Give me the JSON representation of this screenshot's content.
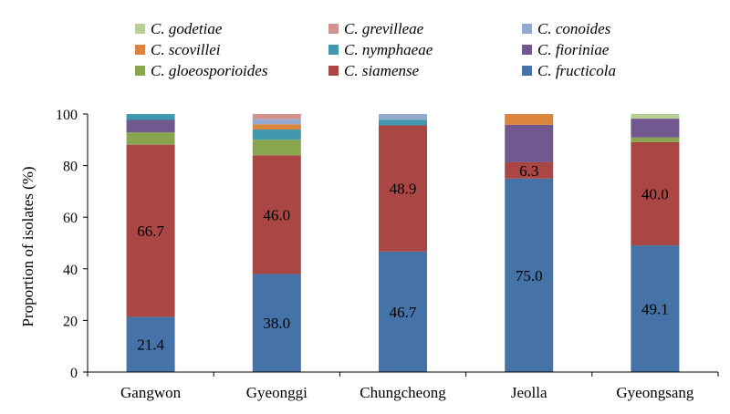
{
  "chart_data": {
    "type": "bar",
    "stacked": true,
    "title": "",
    "xlabel": "",
    "ylabel": "Proportion of isolates (%)",
    "ylim": [
      0,
      100
    ],
    "yticks": [
      0,
      20,
      40,
      60,
      80,
      100
    ],
    "grid": false,
    "legend_position": "top",
    "categories": [
      "Gangwon",
      "Gyeonggi",
      "Chungcheong",
      "Jeolla",
      "Gyeongsang"
    ],
    "series": [
      {
        "name": "C. fructicola",
        "color": "#4572A7",
        "values": [
          21.4,
          38.0,
          46.7,
          75.0,
          49.1
        ],
        "labels": [
          "21.4",
          "38.0",
          "46.7",
          "75.0",
          "49.1"
        ]
      },
      {
        "name": "C. siamense",
        "color": "#AA4643",
        "values": [
          66.7,
          46.0,
          48.9,
          6.3,
          40.0
        ],
        "labels": [
          "66.7",
          "46.0",
          "48.9",
          "6.3",
          "40.0"
        ]
      },
      {
        "name": "C. gloeosporioides",
        "color": "#89A54E",
        "values": [
          4.8,
          6.0,
          0,
          0,
          1.8
        ],
        "labels": [
          "",
          "",
          "",
          "",
          ""
        ]
      },
      {
        "name": "C. fioriniae",
        "color": "#71588F",
        "values": [
          4.8,
          0,
          0,
          14.5,
          7.3
        ],
        "labels": [
          "",
          "",
          "",
          "",
          ""
        ]
      },
      {
        "name": "C. nymphaeae",
        "color": "#4198AF",
        "values": [
          2.3,
          4.0,
          2.2,
          0,
          0
        ],
        "labels": [
          "",
          "",
          "",
          "",
          ""
        ]
      },
      {
        "name": "C. scovillei",
        "color": "#DB843D",
        "values": [
          0,
          2.0,
          0,
          4.2,
          0
        ],
        "labels": [
          "",
          "",
          "",
          "",
          ""
        ]
      },
      {
        "name": "C. conoides",
        "color": "#93A9CF",
        "values": [
          0,
          2.0,
          2.2,
          0,
          0
        ],
        "labels": [
          "",
          "",
          "",
          "",
          ""
        ]
      },
      {
        "name": "C. grevilleae",
        "color": "#D19392",
        "values": [
          0,
          2.0,
          0,
          0,
          0
        ],
        "labels": [
          "",
          "",
          "",
          "",
          ""
        ]
      },
      {
        "name": "C. godetiae",
        "color": "#B9CD96",
        "values": [
          0,
          0,
          0,
          0,
          1.8
        ],
        "labels": [
          "",
          "",
          "",
          "",
          ""
        ]
      }
    ],
    "legend_order": [
      "C. godetiae",
      "C. grevilleae",
      "C. conoides",
      "C. scovillei",
      "C. nymphaeae",
      "C. fioriniae",
      "C. gloeosporioides",
      "C. siamense",
      "C. fructicola"
    ]
  }
}
